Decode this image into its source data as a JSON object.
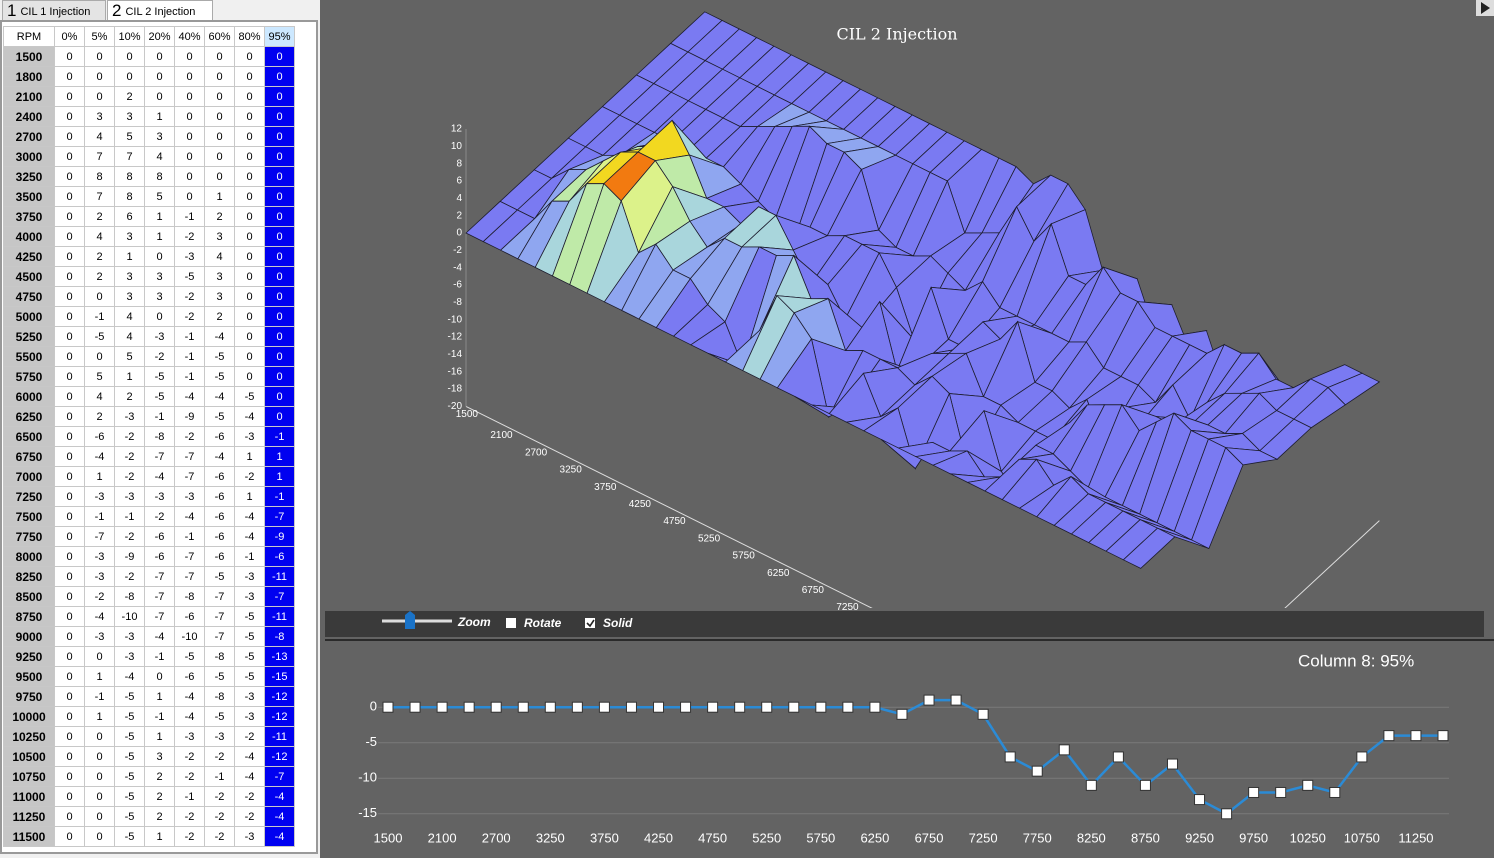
{
  "tabs": [
    {
      "number": "1",
      "label": "CIL 1 Injection"
    },
    {
      "number": "2",
      "label": "CIL 2 Injection"
    }
  ],
  "table": {
    "header": [
      "RPM",
      "0%",
      "5%",
      "10%",
      "20%",
      "40%",
      "60%",
      "80%",
      "95%"
    ],
    "rows": [
      [
        1500,
        0,
        0,
        0,
        0,
        0,
        0,
        0,
        0
      ],
      [
        1800,
        0,
        0,
        0,
        0,
        0,
        0,
        0,
        0
      ],
      [
        2100,
        0,
        0,
        2,
        0,
        0,
        0,
        0,
        0
      ],
      [
        2400,
        0,
        3,
        3,
        1,
        0,
        0,
        0,
        0
      ],
      [
        2700,
        0,
        4,
        5,
        3,
        0,
        0,
        0,
        0
      ],
      [
        3000,
        0,
        7,
        7,
        4,
        0,
        0,
        0,
        0
      ],
      [
        3250,
        0,
        8,
        8,
        8,
        0,
        0,
        0,
        0
      ],
      [
        3500,
        0,
        7,
        8,
        5,
        0,
        1,
        0,
        0
      ],
      [
        3750,
        0,
        2,
        6,
        1,
        -1,
        2,
        0,
        0
      ],
      [
        4000,
        0,
        4,
        3,
        1,
        -2,
        3,
        0,
        0
      ],
      [
        4250,
        0,
        2,
        1,
        0,
        -3,
        4,
        0,
        0
      ],
      [
        4500,
        0,
        2,
        3,
        3,
        -5,
        3,
        0,
        0
      ],
      [
        4750,
        0,
        0,
        3,
        3,
        -2,
        3,
        0,
        0
      ],
      [
        5000,
        0,
        -1,
        4,
        0,
        -2,
        2,
        0,
        0
      ],
      [
        5250,
        0,
        -5,
        4,
        -3,
        -1,
        -4,
        0,
        0
      ],
      [
        5500,
        0,
        0,
        5,
        -2,
        -1,
        -5,
        0,
        0
      ],
      [
        5750,
        0,
        5,
        1,
        -5,
        -1,
        -5,
        0,
        0
      ],
      [
        6000,
        0,
        4,
        2,
        -5,
        -4,
        -4,
        -5,
        0
      ],
      [
        6250,
        0,
        2,
        -3,
        -1,
        -9,
        -5,
        -4,
        0
      ],
      [
        6500,
        0,
        -6,
        -2,
        -8,
        -2,
        -6,
        -3,
        -1
      ],
      [
        6750,
        0,
        -4,
        -2,
        -7,
        -7,
        -4,
        1,
        1
      ],
      [
        7000,
        0,
        1,
        -2,
        -4,
        -7,
        -6,
        -2,
        1
      ],
      [
        7250,
        0,
        -3,
        -3,
        -3,
        -3,
        -6,
        1,
        -1
      ],
      [
        7500,
        0,
        -1,
        -1,
        -2,
        -4,
        -6,
        -4,
        -7
      ],
      [
        7750,
        0,
        -7,
        -2,
        -6,
        -1,
        -6,
        -4,
        -9
      ],
      [
        8000,
        0,
        -3,
        -9,
        -6,
        -7,
        -6,
        -1,
        -6
      ],
      [
        8250,
        0,
        -3,
        -2,
        -7,
        -7,
        -5,
        -3,
        -11
      ],
      [
        8500,
        0,
        -2,
        -8,
        -7,
        -8,
        -7,
        -3,
        -7
      ],
      [
        8750,
        0,
        -4,
        -10,
        -7,
        -6,
        -7,
        -5,
        -11
      ],
      [
        9000,
        0,
        -3,
        -3,
        -4,
        -10,
        -7,
        -5,
        -8
      ],
      [
        9250,
        0,
        0,
        -3,
        -1,
        -5,
        -8,
        -5,
        -13
      ],
      [
        9500,
        0,
        1,
        -4,
        0,
        -6,
        -5,
        -5,
        -15
      ],
      [
        9750,
        0,
        -1,
        -5,
        1,
        -4,
        -8,
        -3,
        -12
      ],
      [
        10000,
        0,
        1,
        -5,
        -1,
        -4,
        -5,
        -3,
        -12
      ],
      [
        10250,
        0,
        0,
        -5,
        1,
        -3,
        -3,
        -2,
        -11
      ],
      [
        10500,
        0,
        0,
        -5,
        3,
        -2,
        -2,
        -4,
        -12
      ],
      [
        10750,
        0,
        0,
        -5,
        2,
        -2,
        -1,
        -4,
        -7
      ],
      [
        11000,
        0,
        0,
        -5,
        2,
        -1,
        -2,
        -2,
        -4
      ],
      [
        11250,
        0,
        0,
        -5,
        2,
        -2,
        -2,
        -2,
        -4
      ],
      [
        11500,
        0,
        0,
        -5,
        1,
        -2,
        -2,
        -3,
        -4
      ]
    ]
  },
  "surface": {
    "title": "CIL 2 Injection",
    "zlim": [
      -20,
      12
    ],
    "zticks": [
      12,
      10,
      8,
      6,
      4,
      2,
      0,
      -2,
      -4,
      -6,
      -8,
      -10,
      -12,
      -14,
      -16,
      -18,
      -20
    ]
  },
  "controls": {
    "zoom": "Zoom",
    "rotate": "Rotate",
    "rotate_checked": false,
    "solid": "Solid",
    "solid_checked": true
  },
  "line_chart": {
    "title": "Column 8: 95%",
    "column": 8,
    "color": "#2b8bd6",
    "ylim": [
      -17,
      2
    ],
    "yticks": [
      0,
      -5,
      -10,
      -15
    ]
  }
}
